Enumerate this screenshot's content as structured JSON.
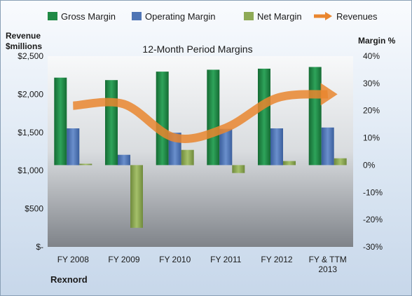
{
  "chart_data": {
    "type": "bar",
    "title": "12-Month Period Margins",
    "company_label": "Rexnord",
    "left_axis": {
      "title_line1": "Revenue",
      "title_line2": "$millions",
      "ylim": [
        0,
        2500
      ],
      "ticks": [
        0,
        500,
        1000,
        1500,
        2000,
        2500
      ],
      "tick_labels": [
        "$-",
        "$500",
        "$1,000",
        "$1,500",
        "$2,000",
        "$2,500"
      ]
    },
    "right_axis": {
      "title": "Margin %",
      "ylim": [
        -30,
        40
      ],
      "ticks": [
        -30,
        -20,
        -10,
        0,
        10,
        20,
        30,
        40
      ],
      "tick_labels": [
        "-30%",
        "-20%",
        "-10%",
        "0%",
        "10%",
        "20%",
        "30%",
        "40%"
      ]
    },
    "categories": [
      [
        "FY 2008"
      ],
      [
        "FY 2009"
      ],
      [
        "FY 2010"
      ],
      [
        "FY 2011"
      ],
      [
        "FY 2012"
      ],
      [
        "FY & TTM",
        "2013"
      ]
    ],
    "series": [
      {
        "name": "Gross Margin",
        "kind": "bar",
        "axis": "right",
        "color": "#1f8a45",
        "values": [
          32.1,
          31.2,
          34.3,
          35.0,
          35.4,
          36.0
        ]
      },
      {
        "name": "Operating Margin",
        "kind": "bar",
        "axis": "right",
        "color": "#4f75b5",
        "values": [
          13.5,
          3.8,
          11.9,
          13.3,
          13.5,
          13.8
        ]
      },
      {
        "name": "Net Margin",
        "kind": "bar",
        "axis": "right",
        "color": "#8eaa56",
        "values": [
          0.5,
          -23.0,
          5.6,
          -2.9,
          1.5,
          2.5
        ]
      },
      {
        "name": "Revenues",
        "kind": "line",
        "axis": "left",
        "color": "#e9862f",
        "values": [
          1850,
          1870,
          1430,
          1560,
          1950,
          2000
        ]
      }
    ],
    "legend_position": "top",
    "grid": false
  }
}
